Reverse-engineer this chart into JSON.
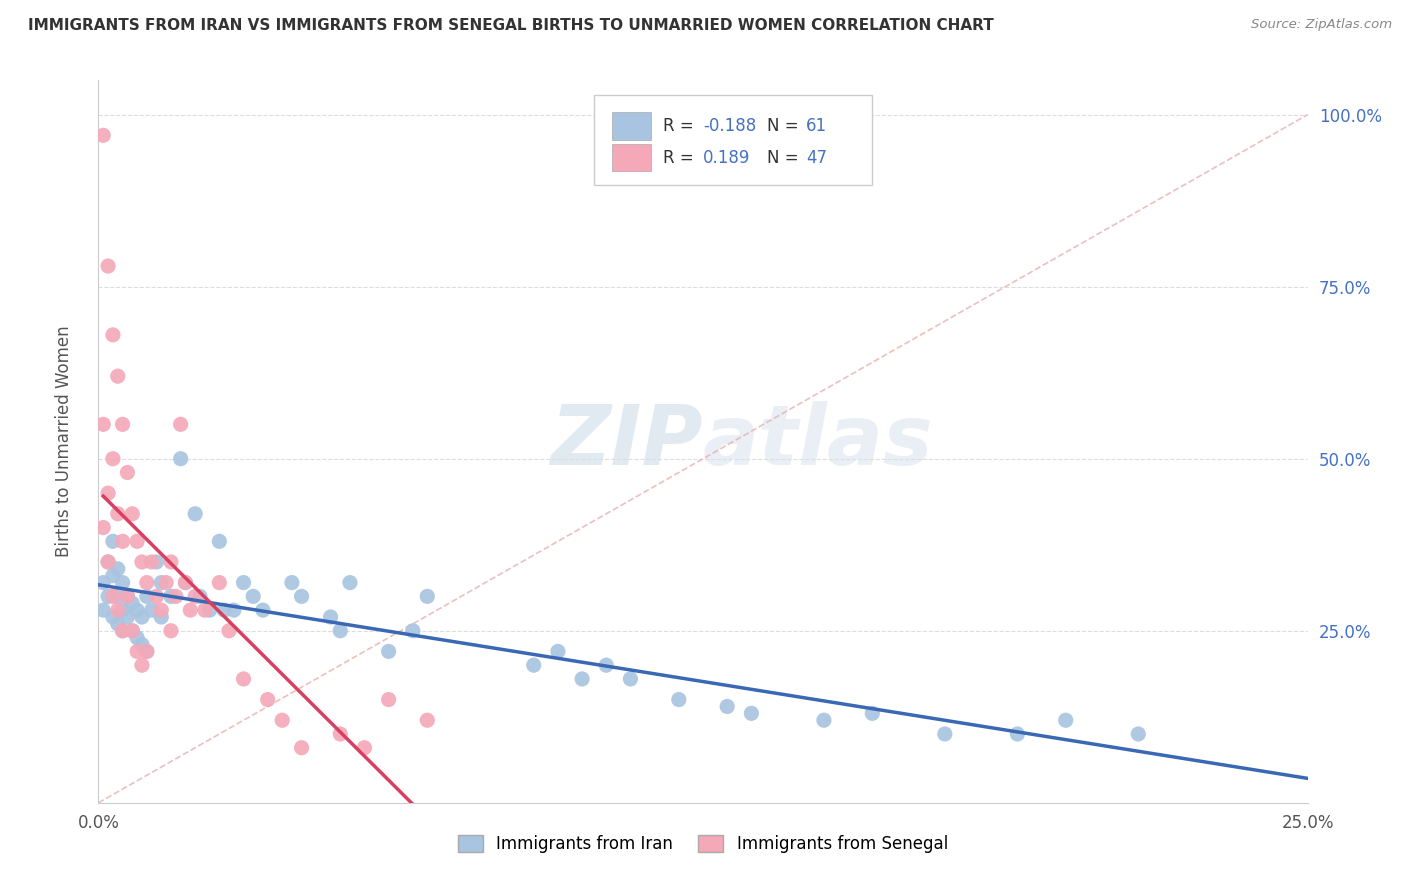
{
  "title": "IMMIGRANTS FROM IRAN VS IMMIGRANTS FROM SENEGAL BIRTHS TO UNMARRIED WOMEN CORRELATION CHART",
  "source": "Source: ZipAtlas.com",
  "ylabel": "Births to Unmarried Women",
  "xlim": [
    0.0,
    0.25
  ],
  "ylim": [
    0.0,
    1.05
  ],
  "iran_R": -0.188,
  "iran_N": 61,
  "senegal_R": 0.189,
  "senegal_N": 47,
  "iran_color": "#a8c4e0",
  "senegal_color": "#f4a8b8",
  "iran_line_color": "#3a68b5",
  "senegal_line_color": "#d94060",
  "background_color": "#ffffff",
  "grid_color": "#dddddd",
  "legend_label_iran": "Immigrants from Iran",
  "legend_label_senegal": "Immigrants from Senegal",
  "iran_x": [
    0.001,
    0.001,
    0.002,
    0.002,
    0.003,
    0.003,
    0.003,
    0.004,
    0.004,
    0.004,
    0.005,
    0.005,
    0.005,
    0.006,
    0.006,
    0.007,
    0.007,
    0.008,
    0.008,
    0.009,
    0.009,
    0.01,
    0.01,
    0.011,
    0.012,
    0.013,
    0.013,
    0.015,
    0.017,
    0.018,
    0.02,
    0.021,
    0.023,
    0.025,
    0.026,
    0.028,
    0.03,
    0.032,
    0.034,
    0.04,
    0.042,
    0.048,
    0.05,
    0.052,
    0.06,
    0.065,
    0.068,
    0.09,
    0.095,
    0.1,
    0.105,
    0.11,
    0.12,
    0.13,
    0.135,
    0.15,
    0.16,
    0.175,
    0.19,
    0.2,
    0.215
  ],
  "iran_y": [
    0.28,
    0.32,
    0.3,
    0.35,
    0.27,
    0.33,
    0.38,
    0.26,
    0.3,
    0.34,
    0.25,
    0.28,
    0.32,
    0.27,
    0.3,
    0.25,
    0.29,
    0.24,
    0.28,
    0.23,
    0.27,
    0.22,
    0.3,
    0.28,
    0.35,
    0.27,
    0.32,
    0.3,
    0.5,
    0.32,
    0.42,
    0.3,
    0.28,
    0.38,
    0.28,
    0.28,
    0.32,
    0.3,
    0.28,
    0.32,
    0.3,
    0.27,
    0.25,
    0.32,
    0.22,
    0.25,
    0.3,
    0.2,
    0.22,
    0.18,
    0.2,
    0.18,
    0.15,
    0.14,
    0.13,
    0.12,
    0.13,
    0.1,
    0.1,
    0.12,
    0.1
  ],
  "senegal_x": [
    0.001,
    0.001,
    0.001,
    0.002,
    0.002,
    0.002,
    0.003,
    0.003,
    0.003,
    0.004,
    0.004,
    0.004,
    0.005,
    0.005,
    0.005,
    0.006,
    0.006,
    0.007,
    0.007,
    0.008,
    0.008,
    0.009,
    0.009,
    0.01,
    0.01,
    0.011,
    0.012,
    0.013,
    0.014,
    0.015,
    0.015,
    0.016,
    0.017,
    0.018,
    0.019,
    0.02,
    0.022,
    0.025,
    0.027,
    0.03,
    0.035,
    0.038,
    0.042,
    0.05,
    0.055,
    0.06,
    0.068
  ],
  "senegal_y": [
    0.97,
    0.55,
    0.4,
    0.78,
    0.45,
    0.35,
    0.68,
    0.5,
    0.3,
    0.62,
    0.42,
    0.28,
    0.55,
    0.38,
    0.25,
    0.48,
    0.3,
    0.42,
    0.25,
    0.38,
    0.22,
    0.35,
    0.2,
    0.32,
    0.22,
    0.35,
    0.3,
    0.28,
    0.32,
    0.35,
    0.25,
    0.3,
    0.55,
    0.32,
    0.28,
    0.3,
    0.28,
    0.32,
    0.25,
    0.18,
    0.15,
    0.12,
    0.08,
    0.1,
    0.08,
    0.15,
    0.12
  ],
  "watermark": "ZIPatlas",
  "diag_line_color": "#e8b0b0"
}
